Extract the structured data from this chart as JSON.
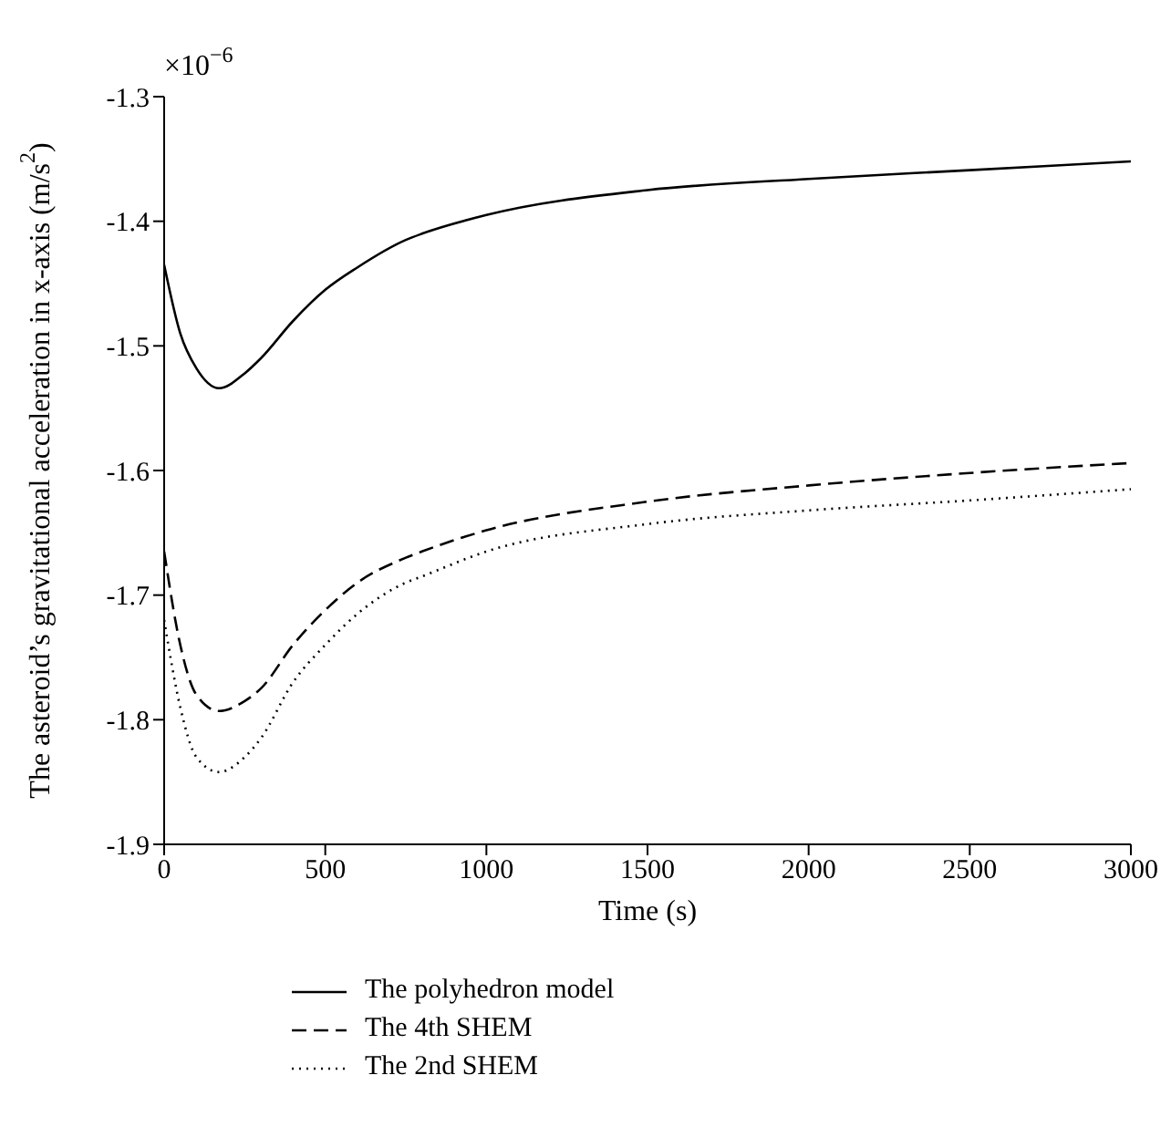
{
  "chart_data": {
    "type": "line",
    "xlabel": "Time (s)",
    "ylabel": "The asteroid’s gravitational acceleration in x-axis (m/s$^{2}$)",
    "annotations": [
      "×10$^{−6}$"
    ],
    "x": [
      0,
      50,
      100,
      170,
      250,
      300,
      400,
      500,
      600,
      750,
      800,
      1000,
      1500,
      2000,
      2500,
      3000
    ],
    "series": [
      {
        "name": "The polyhedron model",
        "color": "#000000",
        "line_style": "solid",
        "values": [
          -1.435,
          -1.49,
          -1.518,
          -1.534,
          -1.522,
          -1.51,
          -1.48,
          -1.455,
          -1.437,
          -1.415,
          -1.41,
          -1.395,
          -1.375,
          -1.366,
          -1.359,
          -1.352
        ]
      },
      {
        "name": "The 4th SHEM",
        "color": "#000000",
        "line_style": "dashed",
        "values": [
          -1.665,
          -1.74,
          -1.78,
          -1.793,
          -1.785,
          -1.775,
          -1.74,
          -1.712,
          -1.69,
          -1.67,
          -1.665,
          -1.648,
          -1.625,
          -1.612,
          -1.602,
          -1.594
        ]
      },
      {
        "name": "The 2nd SHEM",
        "color": "#000000",
        "line_style": "dotted",
        "values": [
          -1.72,
          -1.79,
          -1.83,
          -1.842,
          -1.83,
          -1.815,
          -1.77,
          -1.74,
          -1.715,
          -1.69,
          -1.685,
          -1.665,
          -1.643,
          -1.632,
          -1.624,
          -1.615
        ]
      }
    ],
    "xlim": [
      0,
      3000
    ],
    "xticks": [
      0,
      500,
      1000,
      1500,
      2000,
      2500,
      3000
    ],
    "ylim": [
      -1.9,
      -1.3
    ],
    "yticks": [
      -1.9,
      -1.8,
      -1.7,
      -1.6,
      -1.5,
      -1.4,
      -1.3
    ],
    "grid": false,
    "legend": "bottom left",
    "marker": "none"
  }
}
